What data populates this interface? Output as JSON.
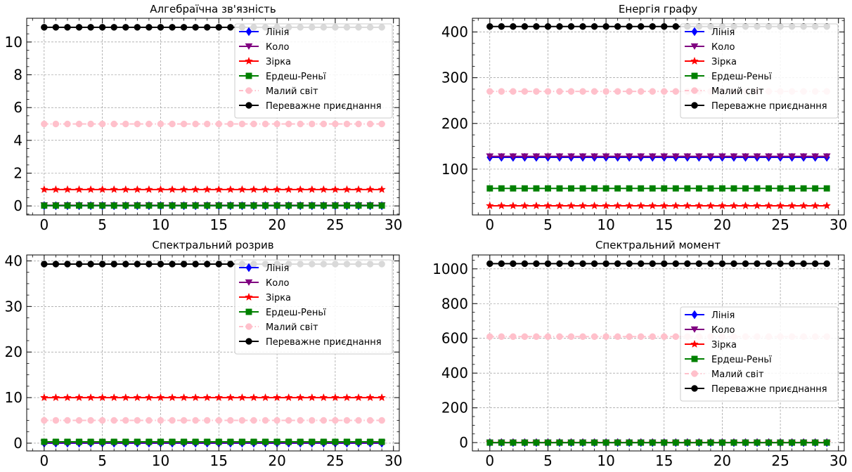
{
  "chart_data": [
    {
      "type": "line",
      "title": "Алгебраїчна зв'язність",
      "xlabel": "",
      "ylabel": "",
      "x_range": [
        0,
        29
      ],
      "xlim": [
        -1.5,
        30.5
      ],
      "ylim": [
        -0.55,
        11.45
      ],
      "xticks": [
        0,
        5,
        10,
        15,
        20,
        25,
        30
      ],
      "yticks": [
        0,
        2,
        4,
        6,
        8,
        10
      ],
      "grid": true,
      "legend_position": "upper right",
      "series": [
        {
          "name": "Лінія",
          "value": 0.01,
          "color": "#0000ff",
          "marker": "diamond",
          "style": "solid"
        },
        {
          "name": "Коло",
          "value": 0.04,
          "color": "#800080",
          "marker": "triangle-down",
          "style": "solid"
        },
        {
          "name": "Зірка",
          "value": 1.0,
          "color": "#ff0000",
          "marker": "star",
          "style": "solid"
        },
        {
          "name": "Ердеш-Реньї",
          "value": 0.02,
          "color": "#008000",
          "marker": "square",
          "style": "solid"
        },
        {
          "name": "Малий світ",
          "value": 5.0,
          "color": "#ffc0cb",
          "marker": "circle",
          "style": "dashdot"
        },
        {
          "name": "Переважне приєднання",
          "value": 10.9,
          "color": "#000000",
          "marker": "circle",
          "style": "solid"
        }
      ]
    },
    {
      "type": "line",
      "title": "Енергія графу",
      "xlabel": "",
      "ylabel": "",
      "x_range": [
        0,
        29
      ],
      "xlim": [
        -1.5,
        30.5
      ],
      "ylim": [
        0,
        430
      ],
      "xticks": [
        0,
        5,
        10,
        15,
        20,
        25,
        30
      ],
      "yticks": [
        100,
        200,
        300,
        400
      ],
      "grid": true,
      "legend_position": "upper right",
      "series": [
        {
          "name": "Лінія",
          "value": 126,
          "color": "#0000ff",
          "marker": "diamond",
          "style": "solid"
        },
        {
          "name": "Коло",
          "value": 128,
          "color": "#800080",
          "marker": "triangle-down",
          "style": "solid"
        },
        {
          "name": "Зірка",
          "value": 20,
          "color": "#ff0000",
          "marker": "star",
          "style": "solid"
        },
        {
          "name": "Ердеш-Реньї",
          "value": 58,
          "color": "#008000",
          "marker": "square",
          "style": "solid"
        },
        {
          "name": "Малий світ",
          "value": 270,
          "color": "#ffc0cb",
          "marker": "circle",
          "style": "dashdot"
        },
        {
          "name": "Переважне приєднання",
          "value": 412,
          "color": "#000000",
          "marker": "circle",
          "style": "solid"
        }
      ]
    },
    {
      "type": "line",
      "title": "Спектральний розрив",
      "xlabel": "",
      "ylabel": "",
      "x_range": [
        0,
        29
      ],
      "xlim": [
        -1.5,
        30.5
      ],
      "ylim": [
        -1.7,
        41.3
      ],
      "xticks": [
        0,
        5,
        10,
        15,
        20,
        25,
        30
      ],
      "yticks": [
        0,
        10,
        20,
        30,
        40
      ],
      "grid": true,
      "legend_position": "upper right",
      "series": [
        {
          "name": "Лінія",
          "value": 0.0,
          "color": "#0000ff",
          "marker": "diamond",
          "style": "solid"
        },
        {
          "name": "Коло",
          "value": 0.1,
          "color": "#800080",
          "marker": "triangle-down",
          "style": "solid"
        },
        {
          "name": "Зірка",
          "value": 10.0,
          "color": "#ff0000",
          "marker": "star",
          "style": "solid"
        },
        {
          "name": "Ердеш-Реньї",
          "value": 0.3,
          "color": "#008000",
          "marker": "square",
          "style": "solid"
        },
        {
          "name": "Малий світ",
          "value": 5.0,
          "color": "#ffc0cb",
          "marker": "circle",
          "style": "dashdot"
        },
        {
          "name": "Переважне приєднання",
          "value": 39.3,
          "color": "#000000",
          "marker": "circle",
          "style": "solid"
        }
      ]
    },
    {
      "type": "line",
      "title": "Спектральний момент",
      "xlabel": "",
      "ylabel": "",
      "x_range": [
        0,
        29
      ],
      "xlim": [
        -1.5,
        30.5
      ],
      "ylim": [
        -48,
        1080
      ],
      "xticks": [
        0,
        5,
        10,
        15,
        20,
        25,
        30
      ],
      "yticks": [
        0,
        200,
        400,
        600,
        800,
        1000
      ],
      "grid": true,
      "legend_position": "center right",
      "series": [
        {
          "name": "Лінія",
          "value": 0,
          "color": "#0000ff",
          "marker": "diamond",
          "style": "solid"
        },
        {
          "name": "Коло",
          "value": 0,
          "color": "#800080",
          "marker": "triangle-down",
          "style": "solid"
        },
        {
          "name": "Зірка",
          "value": 0,
          "color": "#ff0000",
          "marker": "star",
          "style": "solid"
        },
        {
          "name": "Ердеш-Реньї",
          "value": 0,
          "color": "#008000",
          "marker": "square",
          "style": "solid"
        },
        {
          "name": "Малий світ",
          "value": 610,
          "color": "#ffc0cb",
          "marker": "circle",
          "style": "dashdot"
        },
        {
          "name": "Переважне приєднання",
          "value": 1030,
          "color": "#000000",
          "marker": "circle",
          "style": "solid"
        }
      ]
    }
  ]
}
